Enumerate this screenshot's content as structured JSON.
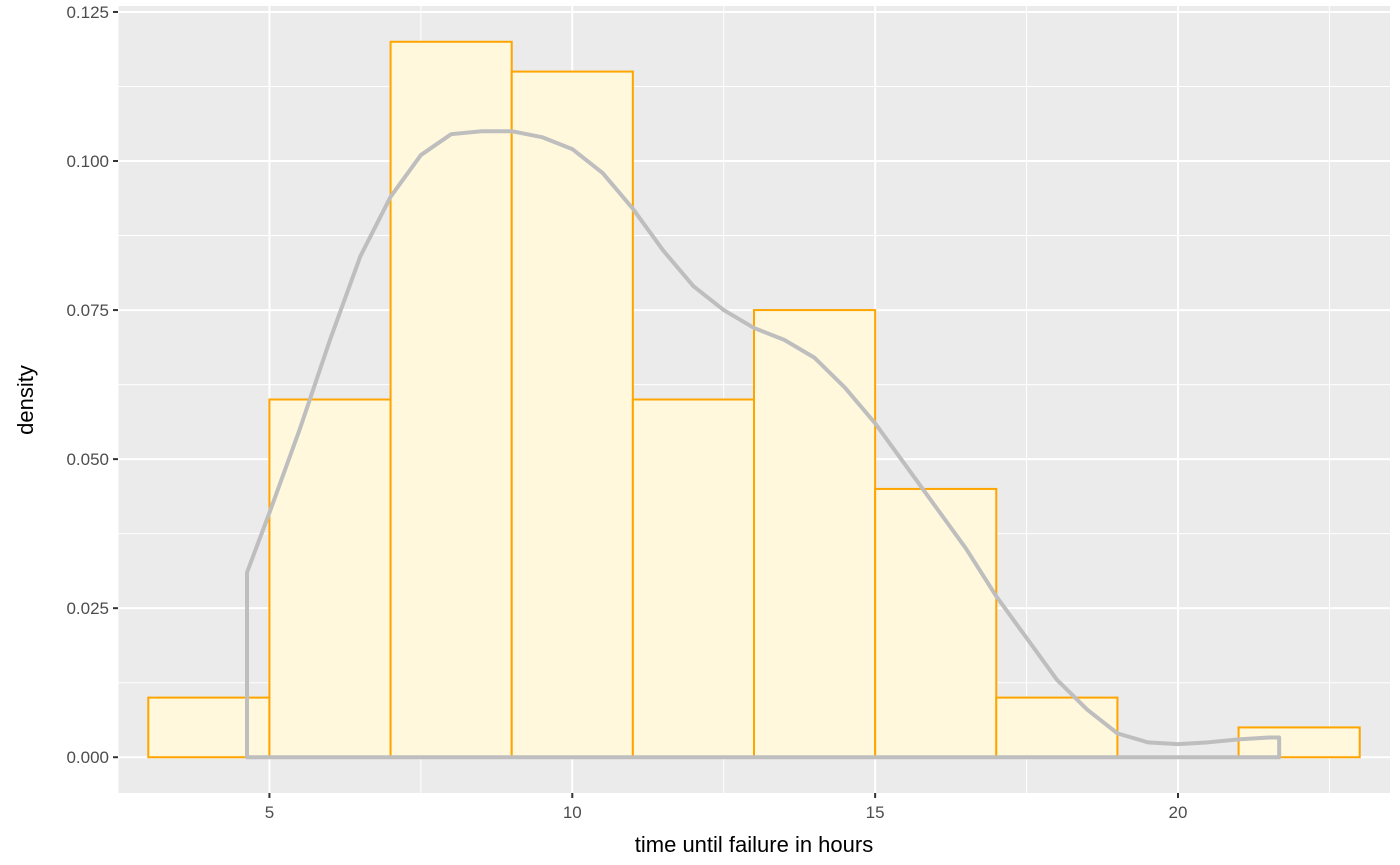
{
  "chart_data": {
    "type": "histogram",
    "xlabel": "time until failure in hours",
    "ylabel": "density",
    "xlim": [
      2.5,
      23.5
    ],
    "ylim": [
      -0.006,
      0.126
    ],
    "x_ticks": [
      5,
      10,
      15,
      20
    ],
    "x_tick_labels": [
      "5",
      "10",
      "15",
      "20"
    ],
    "y_ticks": [
      0,
      0.025,
      0.05,
      0.075,
      0.1,
      0.125
    ],
    "y_tick_labels": [
      "0.000",
      "0.025",
      "0.050",
      "0.075",
      "0.100",
      "0.125"
    ],
    "x_minor_ticks": [
      2.5,
      7.5,
      12.5,
      17.5,
      22.5
    ],
    "y_minor_ticks": [
      0.0125,
      0.0375,
      0.0625,
      0.0875,
      0.1125
    ],
    "grid": true,
    "bins": [
      {
        "x0": 3,
        "x1": 5,
        "density": 0.01
      },
      {
        "x0": 5,
        "x1": 7,
        "density": 0.06
      },
      {
        "x0": 7,
        "x1": 9,
        "density": 0.12
      },
      {
        "x0": 9,
        "x1": 11,
        "density": 0.115
      },
      {
        "x0": 11,
        "x1": 13,
        "density": 0.06
      },
      {
        "x0": 13,
        "x1": 15,
        "density": 0.075
      },
      {
        "x0": 15,
        "x1": 17,
        "density": 0.045
      },
      {
        "x0": 17,
        "x1": 19,
        "density": 0.01
      },
      {
        "x0": 19,
        "x1": 21,
        "density": 0
      },
      {
        "x0": 21,
        "x1": 23,
        "density": 0.005
      }
    ],
    "density_curve": {
      "x": [
        4.63,
        5.0,
        5.5,
        6.0,
        6.5,
        7.0,
        7.5,
        8.0,
        8.5,
        9.0,
        9.5,
        10.0,
        10.5,
        11.0,
        11.5,
        12.0,
        12.5,
        13.0,
        13.5,
        14.0,
        14.5,
        15.0,
        15.5,
        16.0,
        16.5,
        17.0,
        17.5,
        18.0,
        18.5,
        19.0,
        19.5,
        20.0,
        20.5,
        21.0,
        21.5,
        21.67
      ],
      "y": [
        0.031,
        0.041,
        0.055,
        0.07,
        0.084,
        0.094,
        0.101,
        0.1045,
        0.105,
        0.105,
        0.104,
        0.102,
        0.098,
        0.092,
        0.085,
        0.079,
        0.075,
        0.072,
        0.07,
        0.067,
        0.062,
        0.056,
        0.049,
        0.042,
        0.035,
        0.027,
        0.02,
        0.013,
        0.008,
        0.004,
        0.0025,
        0.0022,
        0.0025,
        0.003,
        0.0033,
        0.0033
      ],
      "closed_to_baseline": true
    },
    "colors": {
      "panel_background": "#ebebeb",
      "grid_major": "#ffffff",
      "bar_fill": "#fff8dc",
      "bar_outline": "#ffa500",
      "density_line": "#bebebe",
      "tick_label": "#4d4d4d",
      "axis_title": "#000000"
    }
  }
}
